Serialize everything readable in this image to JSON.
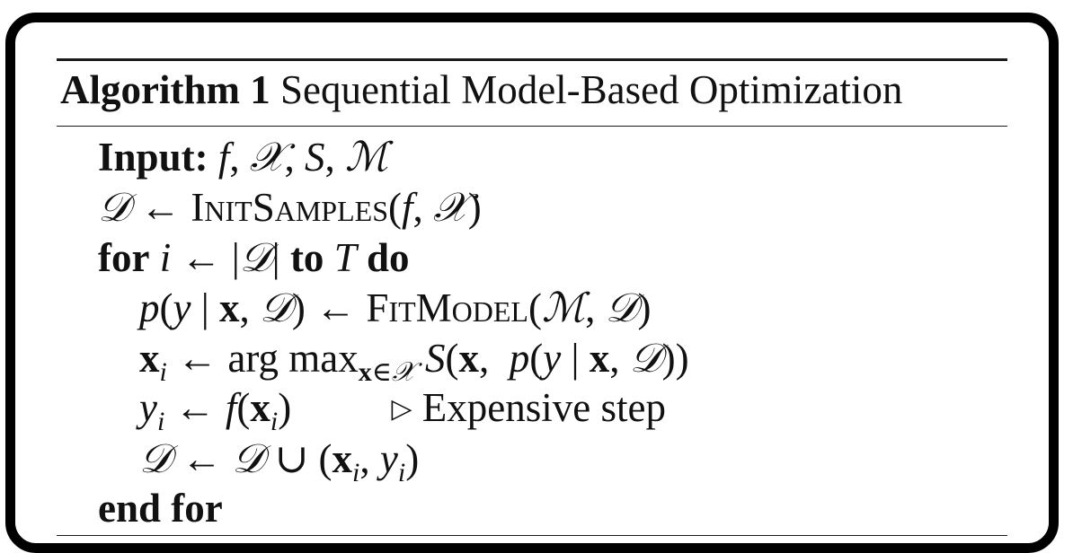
{
  "algorithm": {
    "label": "Algorithm 1",
    "title": "Sequential Model-Based Optimization",
    "input_keyword": "Input:",
    "lines": {
      "init_proc": "InitSamples",
      "for_kw": "for",
      "to_kw": "to",
      "do_kw": "do",
      "fit_proc": "FitModel",
      "argmax_text": "arg max",
      "comment_marker": "▷",
      "comment_text": "Expensive step",
      "end_for": "end for"
    }
  }
}
